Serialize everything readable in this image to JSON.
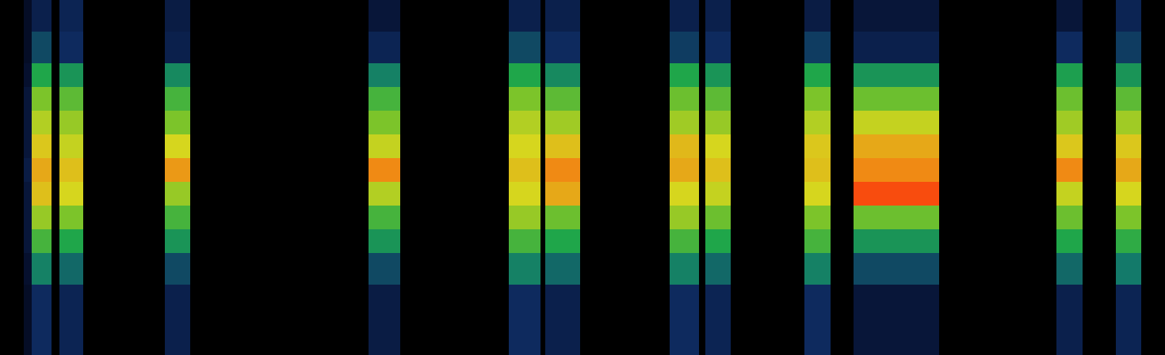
{
  "chart_data": {
    "type": "heatmap",
    "x": [
      0,
      30,
      40,
      65,
      75,
      105,
      208,
      240,
      465,
      505,
      642,
      682,
      688,
      732,
      845,
      882,
      890,
      922,
      1015,
      1048,
      1077,
      1185,
      1333,
      1366,
      1408,
      1440,
      1470
    ],
    "y": [
      0,
      89,
      129,
      159,
      189,
      219,
      249,
      279,
      309,
      339,
      369,
      409,
      449
    ],
    "z": [
      [
        0,
        0.1,
        0.25,
        0,
        0.22,
        0,
        0.2,
        0,
        0.18,
        0,
        0.25,
        0,
        0.2,
        0,
        0.25,
        0,
        0.22,
        0,
        0.25,
        0,
        0.15,
        0,
        0.2,
        0,
        0.22,
        0
      ],
      [
        0,
        0.12,
        0.4,
        0,
        0.35,
        0,
        0.3,
        0,
        0.3,
        0,
        0.4,
        0,
        0.35,
        0,
        0.4,
        0,
        0.35,
        0,
        0.4,
        0,
        0.3,
        0,
        0.35,
        0,
        0.38,
        0
      ],
      [
        0,
        0.15,
        0.55,
        0,
        0.5,
        0,
        0.45,
        0,
        0.45,
        0,
        0.55,
        0,
        0.5,
        0,
        0.55,
        0,
        0.5,
        0,
        0.55,
        0,
        0.45,
        0,
        0.5,
        0,
        0.52,
        0
      ],
      [
        0,
        0.15,
        0.65,
        0,
        0.62,
        0,
        0.55,
        0,
        0.55,
        0,
        0.65,
        0,
        0.6,
        0,
        0.65,
        0,
        0.6,
        0,
        0.62,
        0,
        0.6,
        0,
        0.6,
        0,
        0.62,
        0
      ],
      [
        0,
        0.15,
        0.75,
        0,
        0.72,
        0,
        0.65,
        0,
        0.68,
        0,
        0.72,
        0,
        0.78,
        0,
        0.72,
        0,
        0.7,
        0,
        0.72,
        0,
        0.92,
        0,
        0.7,
        0,
        0.72,
        0
      ],
      [
        0,
        0.18,
        0.78,
        0,
        0.75,
        0,
        0.8,
        0,
        0.82,
        0,
        0.75,
        0,
        0.82,
        0,
        0.78,
        0,
        0.75,
        0,
        0.75,
        0,
        0.82,
        0,
        0.82,
        0,
        0.78,
        0
      ],
      [
        0,
        0.15,
        0.74,
        0,
        0.7,
        0,
        0.72,
        0,
        0.7,
        0,
        0.72,
        0,
        0.75,
        0,
        0.76,
        0,
        0.72,
        0,
        0.74,
        0,
        0.78,
        0,
        0.74,
        0,
        0.74,
        0
      ],
      [
        0,
        0.15,
        0.68,
        0,
        0.65,
        0,
        0.62,
        0,
        0.62,
        0,
        0.68,
        0,
        0.66,
        0,
        0.66,
        0,
        0.65,
        0,
        0.68,
        0,
        0.7,
        0,
        0.66,
        0,
        0.66,
        0
      ],
      [
        0,
        0.15,
        0.62,
        0,
        0.58,
        0,
        0.55,
        0,
        0.55,
        0,
        0.62,
        0,
        0.58,
        0,
        0.6,
        0,
        0.58,
        0,
        0.62,
        0,
        0.6,
        0,
        0.6,
        0,
        0.58,
        0
      ],
      [
        0,
        0.12,
        0.5,
        0,
        0.45,
        0,
        0.42,
        0,
        0.4,
        0,
        0.5,
        0,
        0.42,
        0,
        0.5,
        0,
        0.45,
        0,
        0.5,
        0,
        0.45,
        0,
        0.48,
        0,
        0.45,
        0
      ],
      [
        0,
        0.1,
        0.3,
        0,
        0.25,
        0,
        0.2,
        0,
        0.22,
        0,
        0.3,
        0,
        0.25,
        0,
        0.28,
        0,
        0.25,
        0,
        0.28,
        0,
        0.2,
        0,
        0.25,
        0,
        0.28,
        0
      ],
      [
        0,
        0.1,
        0.2,
        0,
        0.22,
        0,
        0.18,
        0,
        0.15,
        0,
        0.2,
        0,
        0.2,
        0,
        0.2,
        0,
        0.2,
        0,
        0.18,
        0,
        0.15,
        0,
        0.15,
        0,
        0.22,
        0
      ]
    ],
    "xlim": [
      0,
      1470
    ],
    "ylim": [
      0,
      449
    ],
    "zlim": [
      0,
      1
    ],
    "tick_labels": false,
    "grid": false
  }
}
